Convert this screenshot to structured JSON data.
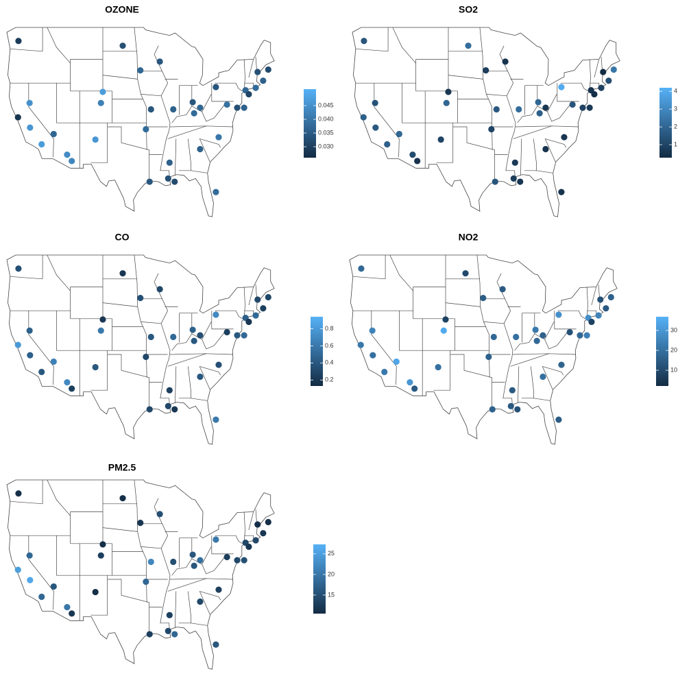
{
  "stations": [
    {
      "lon": -122.2,
      "lat": 47.3
    },
    {
      "lon": -122.3,
      "lat": 37.7
    },
    {
      "lon": -119.8,
      "lat": 39.5
    },
    {
      "lon": -119.7,
      "lat": 36.4
    },
    {
      "lon": -117.2,
      "lat": 34.3
    },
    {
      "lon": -114.6,
      "lat": 35.6
    },
    {
      "lon": -111.7,
      "lat": 33.0
    },
    {
      "lon": -110.7,
      "lat": 32.2
    },
    {
      "lon": -105.6,
      "lat": 34.9
    },
    {
      "lon": -104.0,
      "lat": 40.9
    },
    {
      "lon": -104.4,
      "lat": 39.5
    },
    {
      "lon": -99.7,
      "lat": 46.7
    },
    {
      "lon": -95.9,
      "lat": 43.6
    },
    {
      "lon": -94.7,
      "lat": 36.2
    },
    {
      "lon": -93.6,
      "lat": 38.7
    },
    {
      "lon": -91.7,
      "lat": 44.7
    },
    {
      "lon": -89.6,
      "lat": 32.0
    },
    {
      "lon": -93.9,
      "lat": 29.6
    },
    {
      "lon": -89.9,
      "lat": 30.0
    },
    {
      "lon": -88.8,
      "lat": 38.7
    },
    {
      "lon": -88.5,
      "lat": 29.6
    },
    {
      "lon": -84.6,
      "lat": 39.6
    },
    {
      "lon": -84.3,
      "lat": 38.2
    },
    {
      "lon": -83.0,
      "lat": 38.9
    },
    {
      "lon": -83.0,
      "lat": 33.7
    },
    {
      "lon": -79.6,
      "lat": 41.5
    },
    {
      "lon": -79.6,
      "lat": 28.3
    },
    {
      "lon": -79.0,
      "lat": 35.2
    },
    {
      "lon": -77.2,
      "lat": 39.3
    },
    {
      "lon": -75.0,
      "lat": 38.9
    },
    {
      "lon": -73.5,
      "lat": 38.9
    },
    {
      "lon": -73.2,
      "lat": 41.1
    },
    {
      "lon": -71.0,
      "lat": 41.4
    },
    {
      "lon": -69.4,
      "lat": 42.3
    },
    {
      "lon": -70.6,
      "lat": 43.4
    },
    {
      "lon": -68.3,
      "lat": 43.7
    },
    {
      "lon": -72.5,
      "lat": 40.6
    }
  ],
  "chart_data": [
    {
      "type": "map",
      "title": "OZONE",
      "colors": [
        "#132B43",
        "#56B1F7"
      ],
      "clim": [
        0.026,
        0.051
      ],
      "cticks": [
        {
          "value": 0.03,
          "label": "0.030"
        },
        0.035,
        {
          "value": 0.04,
          "label": "0.040"
        },
        0.045
      ],
      "values": [
        0.029,
        0.028,
        0.045,
        0.046,
        0.047,
        0.037,
        0.044,
        0.043,
        0.046,
        0.047,
        0.042,
        0.033,
        0.037,
        0.038,
        0.034,
        0.034,
        0.036,
        0.034,
        0.033,
        0.036,
        0.032,
        0.034,
        0.038,
        0.037,
        0.036,
        0.034,
        0.038,
        0.04,
        0.039,
        0.033,
        0.036,
        0.037,
        0.038,
        0.036,
        0.033,
        0.032,
        0.031
      ]
    },
    {
      "type": "map",
      "title": "SO2",
      "colors": [
        "#132B43",
        "#56B1F7"
      ],
      "clim": [
        0.27,
        4.2
      ],
      "cticks": [
        1,
        2,
        3,
        4
      ],
      "values": [
        1.5,
        1.8,
        1.4,
        1.6,
        1.8,
        2.0,
        1.2,
        0.5,
        1.0,
        0.6,
        2.0,
        2.2,
        0.8,
        1.0,
        1.6,
        0.5,
        0.7,
        1.5,
        0.8,
        2.2,
        0.6,
        2.0,
        1.8,
        0.6,
        0.5,
        4.0,
        0.5,
        0.6,
        1.5,
        1.0,
        0.7,
        0.5,
        0.9,
        1.3,
        0.3,
        2.5,
        0.4
      ]
    },
    {
      "type": "map",
      "title": "CO",
      "colors": [
        "#132B43",
        "#56B1F7"
      ],
      "clim": [
        0.13,
        0.94
      ],
      "cticks": [
        0.2,
        0.4,
        0.6,
        0.8
      ],
      "values": [
        0.35,
        0.8,
        0.45,
        0.45,
        0.4,
        0.65,
        0.7,
        0.25,
        0.4,
        0.2,
        0.6,
        0.2,
        0.35,
        0.3,
        0.4,
        0.3,
        0.25,
        0.3,
        0.3,
        0.5,
        0.2,
        0.45,
        0.4,
        0.35,
        0.4,
        0.7,
        0.6,
        0.35,
        0.25,
        0.4,
        0.5,
        0.45,
        0.5,
        0.25,
        0.3,
        0.3,
        0.2
      ]
    },
    {
      "type": "map",
      "title": "NO2",
      "colors": [
        "#132B43",
        "#56B1F7"
      ],
      "clim": [
        2.1,
        36.9
      ],
      "cticks": [
        10,
        20,
        30
      ],
      "values": [
        18,
        22,
        25,
        20,
        22,
        34,
        30,
        14,
        20,
        8,
        35,
        10,
        15,
        16,
        18,
        14,
        14,
        16,
        14,
        20,
        12,
        22,
        18,
        16,
        20,
        28,
        15,
        17,
        12,
        18,
        24,
        28,
        25,
        14,
        12,
        16,
        8
      ]
    },
    {
      "type": "map",
      "title": "PM2.5",
      "colors": [
        "#132B43",
        "#56B1F7"
      ],
      "clim": [
        10.5,
        27.3
      ],
      "cticks": [
        15,
        20,
        25
      ],
      "values": [
        11,
        25,
        18,
        26,
        18,
        16,
        20,
        12,
        11,
        11,
        13,
        11,
        12,
        18,
        22,
        15,
        13,
        13,
        14,
        15,
        18,
        16,
        16,
        19,
        14,
        20,
        16,
        13,
        13,
        14,
        15,
        14,
        14,
        12,
        11,
        11,
        12
      ]
    }
  ]
}
